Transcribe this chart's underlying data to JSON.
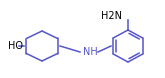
{
  "bg_color": "#ffffff",
  "line_color": "#5555cc",
  "text_color": "#000000",
  "fig_width": 1.65,
  "fig_height": 0.78,
  "dpi": 100,
  "HO_label": "HO",
  "NH_label": "NH",
  "NH2_label": "H2N",
  "line_width": 1.1,
  "font_size": 7.0
}
